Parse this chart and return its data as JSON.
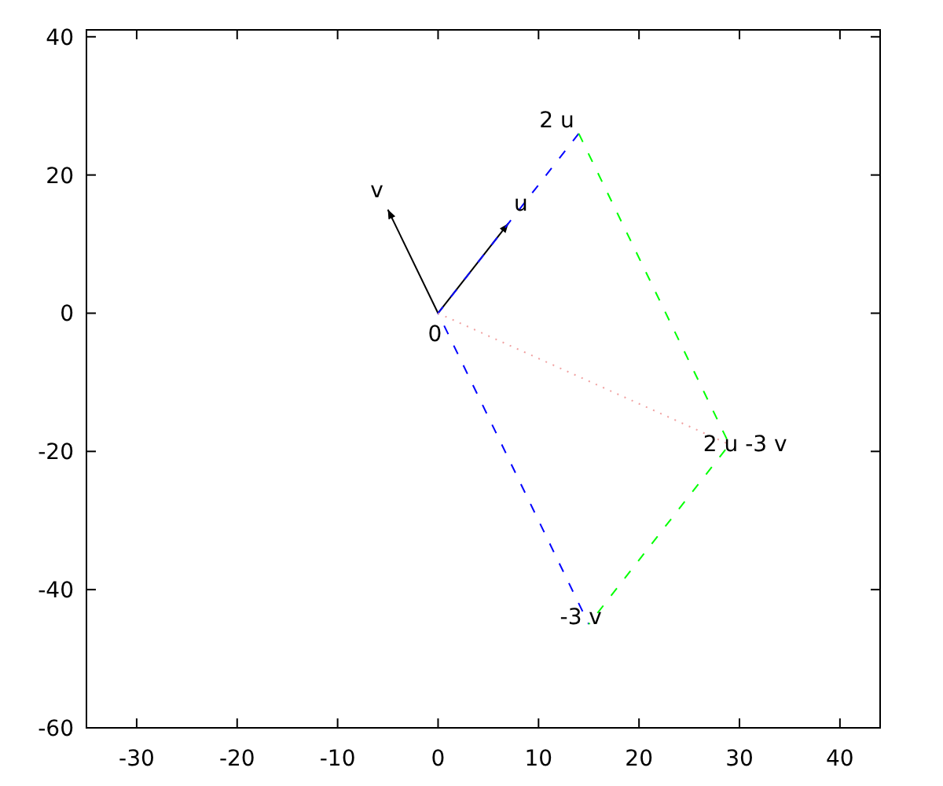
{
  "chart_data": {
    "type": "line",
    "xlim": [
      -35,
      44
    ],
    "ylim": [
      -60,
      41
    ],
    "xticks": [
      -30,
      -20,
      -10,
      0,
      10,
      20,
      30,
      40
    ],
    "yticks": [
      -60,
      -40,
      -20,
      0,
      20,
      40
    ],
    "grid": false,
    "series": [
      {
        "color": "#000000",
        "x": [
          0,
          7
        ],
        "values": [
          0,
          13
        ],
        "line_style": "solid"
      },
      {
        "color": "#000000",
        "x": [
          0,
          -5
        ],
        "values": [
          0,
          15
        ],
        "line_style": "solid"
      },
      {
        "color": "#0000ff",
        "x": [
          14,
          0,
          15
        ],
        "values": [
          26,
          0,
          -45
        ],
        "line_style": "dashed"
      },
      {
        "color": "#00ff00",
        "x": [
          14,
          29,
          15
        ],
        "values": [
          26,
          -19,
          -45
        ],
        "line_style": "dashed"
      },
      {
        "color": "#f0a0a0",
        "x": [
          0,
          29
        ],
        "values": [
          0,
          -19
        ],
        "line_style": "dotted"
      }
    ],
    "annotations": [
      {
        "text": "0",
        "x": 0,
        "y": 0
      },
      {
        "text": "u",
        "x": 7,
        "y": 13
      },
      {
        "text": "v",
        "x": -5,
        "y": 15
      },
      {
        "text": "2 u",
        "x": 14,
        "y": 26
      },
      {
        "text": "-3 v",
        "x": 15,
        "y": -45
      },
      {
        "text": "2 u -3 v",
        "x": 29,
        "y": -19
      }
    ]
  }
}
